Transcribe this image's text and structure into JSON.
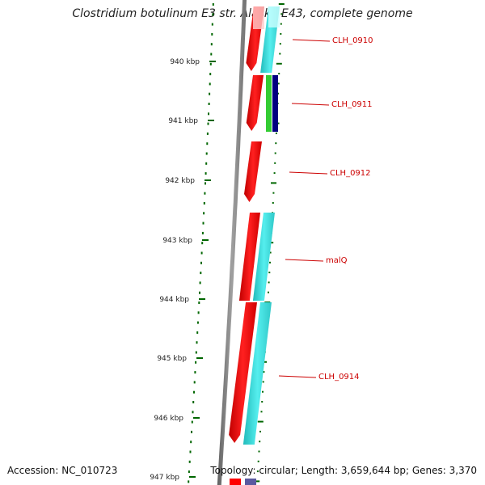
{
  "title": "Clostridium botulinum E3 str. Alaska E43, complete genome",
  "footer": {
    "accession": "Accession: NC_010723",
    "summary": "Topology: circular; Length: 3,659,644 bp; Genes: 3,370"
  },
  "colors": {
    "backbone": "#808080",
    "forward_cds": "#ff0000",
    "forward_feature": "#00cccc",
    "gc_tick": "#006600",
    "label": "#cc0000",
    "green_feature": "#33cc33",
    "navy_feature": "#000080",
    "purple_feature": "#5a5aa0"
  },
  "scale_labels": [
    "940 kbp",
    "941 kbp",
    "942 kbp",
    "943 kbp",
    "944 kbp",
    "945 kbp",
    "946 kbp",
    "947 kbp"
  ],
  "genes": [
    "CLH_0910",
    "CLH_0911",
    "CLH_0912",
    "malQ",
    "CLH_0914"
  ]
}
